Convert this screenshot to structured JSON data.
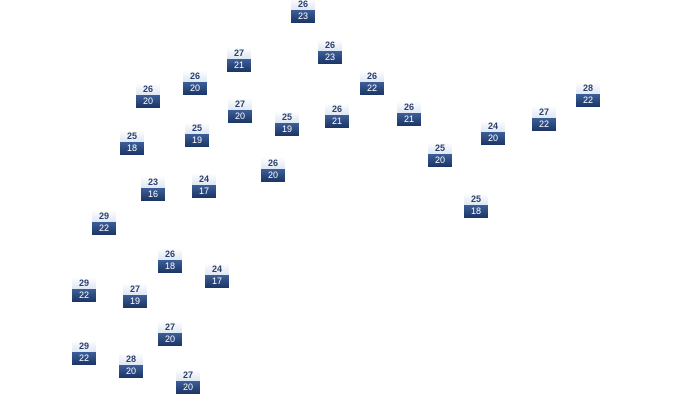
{
  "markers": [
    {
      "high": 26,
      "low": 23
    },
    {
      "high": 27,
      "low": 21
    },
    {
      "high": 26,
      "low": 23
    },
    {
      "high": 26,
      "low": 20
    },
    {
      "high": 26,
      "low": 20
    },
    {
      "high": 26,
      "low": 22
    },
    {
      "high": 28,
      "low": 22
    },
    {
      "high": 27,
      "low": 20
    },
    {
      "high": 25,
      "low": 19
    },
    {
      "high": 26,
      "low": 21
    },
    {
      "high": 26,
      "low": 21
    },
    {
      "high": 27,
      "low": 22
    },
    {
      "high": 25,
      "low": 18
    },
    {
      "high": 25,
      "low": 19
    },
    {
      "high": 24,
      "low": 20
    },
    {
      "high": 25,
      "low": 20
    },
    {
      "high": 26,
      "low": 20
    },
    {
      "high": 23,
      "low": 16
    },
    {
      "high": 24,
      "low": 17
    },
    {
      "high": 25,
      "low": 18
    },
    {
      "high": 29,
      "low": 22
    },
    {
      "high": 26,
      "low": 18
    },
    {
      "high": 24,
      "low": 17
    },
    {
      "high": 29,
      "low": 22
    },
    {
      "high": 27,
      "low": 19
    },
    {
      "high": 27,
      "low": 20
    },
    {
      "high": 29,
      "low": 22
    },
    {
      "high": 28,
      "low": 20
    },
    {
      "high": 27,
      "low": 20
    }
  ]
}
